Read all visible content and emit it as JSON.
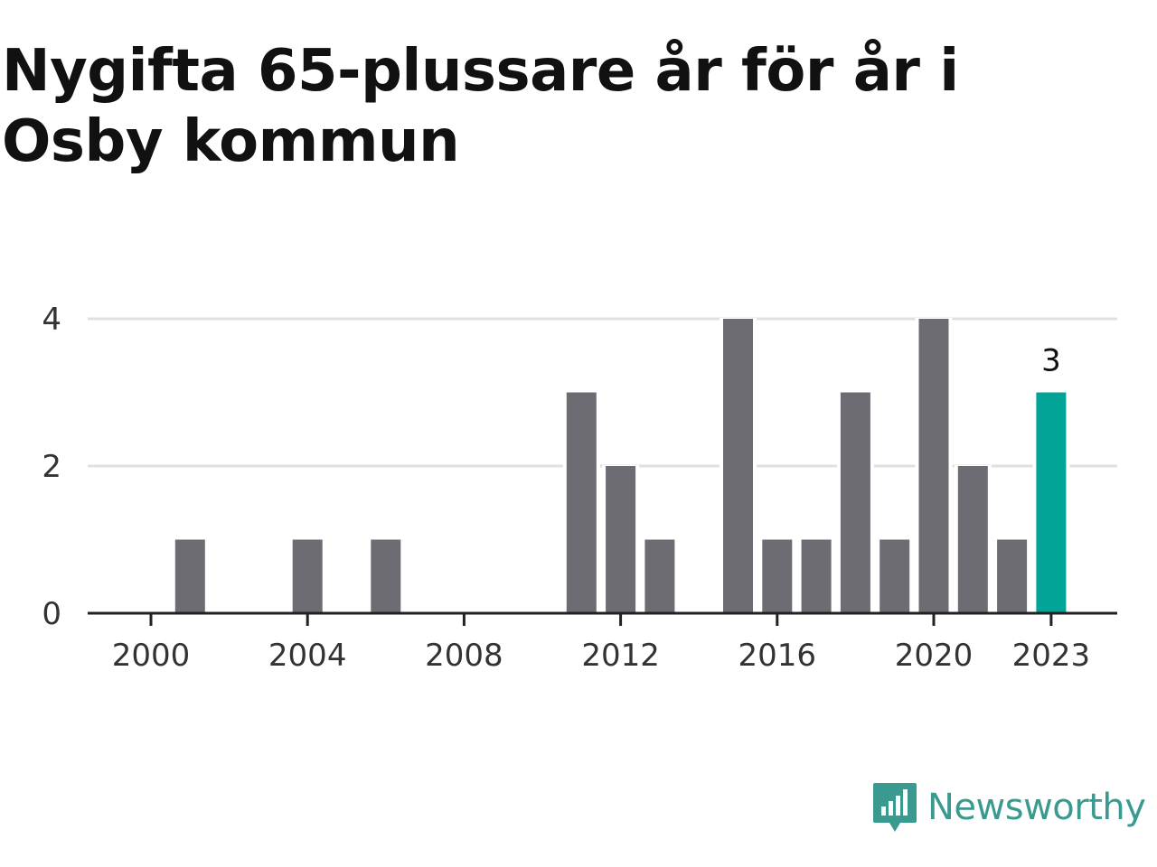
{
  "title": "Nygifta 65-plussare år för år i Osby kommun",
  "brand": {
    "name": "Newsworthy",
    "color": "#3a9a8f",
    "icon": "newsworthy-bar-chart-logo-icon"
  },
  "colors": {
    "bar": "#6e6c73",
    "highlight": "#02a497",
    "grid": "#e0e0e0",
    "axis": "#222222"
  },
  "chart_data": {
    "type": "bar",
    "title": "Nygifta 65-plussare år för år i Osby kommun",
    "xlabel": "",
    "ylabel": "",
    "categories": [
      2000,
      2001,
      2002,
      2003,
      2004,
      2005,
      2006,
      2007,
      2008,
      2009,
      2010,
      2011,
      2012,
      2013,
      2014,
      2015,
      2016,
      2017,
      2018,
      2019,
      2020,
      2021,
      2022,
      2023
    ],
    "values": [
      0,
      1,
      0,
      0,
      1,
      0,
      1,
      0,
      0,
      0,
      0,
      3,
      2,
      1,
      0,
      4,
      1,
      1,
      3,
      1,
      4,
      2,
      1,
      3
    ],
    "highlight_category": 2023,
    "data_labels": [
      {
        "category": 2023,
        "text": "3"
      }
    ],
    "x_ticks": [
      2000,
      2004,
      2008,
      2012,
      2016,
      2020,
      2023
    ],
    "y_ticks": [
      0,
      2,
      4
    ],
    "ylim": [
      0,
      4
    ],
    "grid": true,
    "legend": "none"
  }
}
